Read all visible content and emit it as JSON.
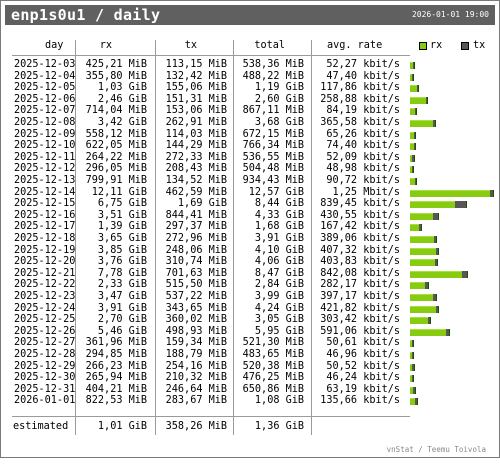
{
  "title": "enp1s0u1 / daily",
  "timestamp": "2026-01-01 19:00",
  "headers": {
    "day": "day",
    "rx": "rx",
    "tx": "tx",
    "total": "total",
    "rate": "avg. rate"
  },
  "legend": {
    "rx": "rx",
    "tx": "tx",
    "rx_color": "#88cc12",
    "tx_color": "#575757"
  },
  "rows": [
    {
      "day": "2025-12-03",
      "rx": "425,21 MiB",
      "tx": "113,15 MiB",
      "total": "538,36 MiB",
      "rate": "52,27 kbit/s",
      "rx_frac": 0.0081,
      "tx_frac": 0.0022
    },
    {
      "day": "2025-12-04",
      "rx": "355,80 MiB",
      "tx": "132,42 MiB",
      "total": "488,22 MiB",
      "rate": "47,40 kbit/s",
      "rx_frac": 0.0068,
      "tx_frac": 0.0025
    },
    {
      "day": "2025-12-05",
      "rx": "1,03 GiB",
      "tx": "155,06 MiB",
      "total": "1,19 GiB",
      "rate": "117,86 kbit/s",
      "rx_frac": 0.0202,
      "tx_frac": 0.003
    },
    {
      "day": "2025-12-06",
      "rx": "2,46 GiB",
      "tx": "151,31 MiB",
      "total": "2,60 GiB",
      "rate": "258,88 kbit/s",
      "rx_frac": 0.0481,
      "tx_frac": 0.0029
    },
    {
      "day": "2025-12-07",
      "rx": "714,04 MiB",
      "tx": "153,06 MiB",
      "total": "867,11 MiB",
      "rate": "84,19 kbit/s",
      "rx_frac": 0.0136,
      "tx_frac": 0.0029
    },
    {
      "day": "2025-12-08",
      "rx": "3,42 GiB",
      "tx": "262,91 MiB",
      "total": "3,68 GiB",
      "rate": "365,58 kbit/s",
      "rx_frac": 0.0668,
      "tx_frac": 0.005
    },
    {
      "day": "2025-12-09",
      "rx": "558,12 MiB",
      "tx": "114,03 MiB",
      "total": "672,15 MiB",
      "rate": "65,26 kbit/s",
      "rx_frac": 0.0106,
      "tx_frac": 0.0022
    },
    {
      "day": "2025-12-10",
      "rx": "622,05 MiB",
      "tx": "144,29 MiB",
      "total": "766,34 MiB",
      "rate": "74,40 kbit/s",
      "rx_frac": 0.0119,
      "tx_frac": 0.0028
    },
    {
      "day": "2025-12-11",
      "rx": "264,22 MiB",
      "tx": "272,33 MiB",
      "total": "536,55 MiB",
      "rate": "52,09 kbit/s",
      "rx_frac": 0.005,
      "tx_frac": 0.0052
    },
    {
      "day": "2025-12-12",
      "rx": "296,05 MiB",
      "tx": "208,43 MiB",
      "total": "504,48 MiB",
      "rate": "48,98 kbit/s",
      "rx_frac": 0.0056,
      "tx_frac": 0.004
    },
    {
      "day": "2025-12-13",
      "rx": "799,91 MiB",
      "tx": "134,52 MiB",
      "total": "934,43 MiB",
      "rate": "90,72 kbit/s",
      "rx_frac": 0.0153,
      "tx_frac": 0.0026
    },
    {
      "day": "2025-12-14",
      "rx": "12,11 GiB",
      "tx": "462,59 MiB",
      "total": "12,57 GiB",
      "rate": "1,25 Mbit/s",
      "rx_frac": 0.2365,
      "tx_frac": 0.0088
    },
    {
      "day": "2025-12-15",
      "rx": "6,75 GiB",
      "tx": "1,69 GiB",
      "total": "8,44 GiB",
      "rate": "839,45 kbit/s",
      "rx_frac": 0.1318,
      "tx_frac": 0.033
    },
    {
      "day": "2025-12-16",
      "rx": "3,51 GiB",
      "tx": "844,41 MiB",
      "total": "4,33 GiB",
      "rate": "430,55 kbit/s",
      "rx_frac": 0.0686,
      "tx_frac": 0.0161
    },
    {
      "day": "2025-12-17",
      "rx": "1,39 GiB",
      "tx": "297,37 MiB",
      "total": "1,68 GiB",
      "rate": "167,42 kbit/s",
      "rx_frac": 0.0271,
      "tx_frac": 0.0057
    },
    {
      "day": "2025-12-18",
      "rx": "3,65 GiB",
      "tx": "272,96 MiB",
      "total": "3,91 GiB",
      "rate": "389,06 kbit/s",
      "rx_frac": 0.0713,
      "tx_frac": 0.0052
    },
    {
      "day": "2025-12-19",
      "rx": "3,85 GiB",
      "tx": "248,06 MiB",
      "total": "4,10 GiB",
      "rate": "407,32 kbit/s",
      "rx_frac": 0.0752,
      "tx_frac": 0.0047
    },
    {
      "day": "2025-12-20",
      "rx": "3,76 GiB",
      "tx": "310,74 MiB",
      "total": "4,06 GiB",
      "rate": "403,83 kbit/s",
      "rx_frac": 0.0734,
      "tx_frac": 0.0059
    },
    {
      "day": "2025-12-21",
      "rx": "7,78 GiB",
      "tx": "701,63 MiB",
      "total": "8,47 GiB",
      "rate": "842,08 kbit/s",
      "rx_frac": 0.1519,
      "tx_frac": 0.0134
    },
    {
      "day": "2025-12-22",
      "rx": "2,33 GiB",
      "tx": "515,50 MiB",
      "total": "2,84 GiB",
      "rate": "282,17 kbit/s",
      "rx_frac": 0.0455,
      "tx_frac": 0.0098
    },
    {
      "day": "2025-12-23",
      "rx": "3,47 GiB",
      "tx": "537,22 MiB",
      "total": "3,99 GiB",
      "rate": "397,17 kbit/s",
      "rx_frac": 0.0678,
      "tx_frac": 0.0102
    },
    {
      "day": "2025-12-24",
      "rx": "3,91 GiB",
      "tx": "343,65 MiB",
      "total": "4,24 GiB",
      "rate": "421,82 kbit/s",
      "rx_frac": 0.0764,
      "tx_frac": 0.0066
    },
    {
      "day": "2025-12-25",
      "rx": "2,70 GiB",
      "tx": "360,02 MiB",
      "total": "3,05 GiB",
      "rate": "303,42 kbit/s",
      "rx_frac": 0.0527,
      "tx_frac": 0.0069
    },
    {
      "day": "2025-12-26",
      "rx": "5,46 GiB",
      "tx": "498,93 MiB",
      "total": "5,95 GiB",
      "rate": "591,06 kbit/s",
      "rx_frac": 0.1066,
      "tx_frac": 0.0095
    },
    {
      "day": "2025-12-27",
      "rx": "361,96 MiB",
      "tx": "159,34 MiB",
      "total": "521,30 MiB",
      "rate": "50,61 kbit/s",
      "rx_frac": 0.0069,
      "tx_frac": 0.003
    },
    {
      "day": "2025-12-28",
      "rx": "294,85 MiB",
      "tx": "188,79 MiB",
      "total": "483,65 MiB",
      "rate": "46,96 kbit/s",
      "rx_frac": 0.0056,
      "tx_frac": 0.0036
    },
    {
      "day": "2025-12-29",
      "rx": "266,23 MiB",
      "tx": "254,16 MiB",
      "total": "520,38 MiB",
      "rate": "50,52 kbit/s",
      "rx_frac": 0.0051,
      "tx_frac": 0.0048
    },
    {
      "day": "2025-12-30",
      "rx": "265,94 MiB",
      "tx": "210,32 MiB",
      "total": "476,25 MiB",
      "rate": "46,24 kbit/s",
      "rx_frac": 0.0051,
      "tx_frac": 0.004
    },
    {
      "day": "2025-12-31",
      "rx": "404,21 MiB",
      "tx": "246,64 MiB",
      "total": "650,86 MiB",
      "rate": "63,19 kbit/s",
      "rx_frac": 0.0077,
      "tx_frac": 0.0047
    },
    {
      "day": "2026-01-01",
      "rx": "822,53 MiB",
      "tx": "283,67 MiB",
      "total": "1,08 GiB",
      "rate": "135,66 kbit/s",
      "rx_frac": 0.0157,
      "tx_frac": 0.0054
    }
  ],
  "estimated": {
    "label": "estimated",
    "rx": "1,01 GiB",
    "tx": "358,26 MiB",
    "total": "1,36 GiB"
  },
  "credit": "vnStat / Teemu Toivola"
}
